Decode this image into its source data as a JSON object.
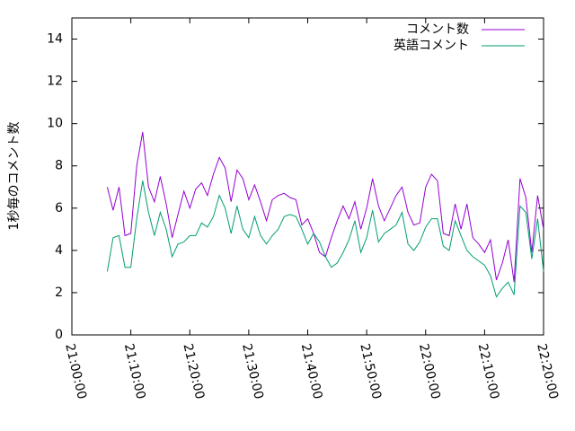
{
  "chart_data": {
    "type": "line",
    "y_label": "1秒毎のコメント数",
    "x": [
      "21:06:00",
      "21:07:00",
      "21:08:00",
      "21:09:00",
      "21:10:00",
      "21:11:00",
      "21:12:00",
      "21:13:00",
      "21:14:00",
      "21:15:00",
      "21:16:00",
      "21:17:00",
      "21:18:00",
      "21:19:00",
      "21:20:00",
      "21:21:00",
      "21:22:00",
      "21:23:00",
      "21:24:00",
      "21:25:00",
      "21:26:00",
      "21:27:00",
      "21:28:00",
      "21:29:00",
      "21:30:00",
      "21:31:00",
      "21:32:00",
      "21:33:00",
      "21:34:00",
      "21:35:00",
      "21:36:00",
      "21:37:00",
      "21:38:00",
      "21:39:00",
      "21:40:00",
      "21:41:00",
      "21:42:00",
      "21:43:00",
      "21:44:00",
      "21:45:00",
      "21:46:00",
      "21:47:00",
      "21:48:00",
      "21:49:00",
      "21:50:00",
      "21:51:00",
      "21:52:00",
      "21:53:00",
      "21:54:00",
      "21:55:00",
      "21:56:00",
      "21:57:00",
      "21:58:00",
      "21:59:00",
      "22:00:00",
      "22:01:00",
      "22:02:00",
      "22:03:00",
      "22:04:00",
      "22:05:00",
      "22:06:00",
      "22:07:00",
      "22:08:00",
      "22:09:00",
      "22:10:00",
      "22:11:00",
      "22:12:00",
      "22:13:00",
      "22:14:00",
      "22:15:00",
      "22:16:00",
      "22:17:00",
      "22:18:00",
      "22:19:00",
      "22:20:00"
    ],
    "series": [
      {
        "name": "コメント数",
        "color": "#9400d3",
        "values": [
          7.0,
          5.9,
          7.0,
          4.7,
          4.8,
          8.0,
          9.6,
          7.0,
          6.3,
          7.5,
          6.2,
          4.6,
          5.7,
          6.8,
          6.0,
          6.9,
          7.2,
          6.6,
          7.6,
          8.4,
          7.9,
          6.3,
          7.8,
          7.4,
          6.4,
          7.1,
          6.3,
          5.4,
          6.4,
          6.6,
          6.7,
          6.5,
          6.4,
          5.2,
          5.5,
          4.8,
          3.9,
          3.7,
          4.6,
          5.4,
          6.1,
          5.5,
          6.3,
          5.0,
          6.0,
          7.4,
          6.1,
          5.4,
          6.0,
          6.6,
          7.0,
          5.8,
          5.2,
          5.3,
          7.0,
          7.6,
          7.3,
          4.8,
          4.7,
          6.2,
          5.0,
          6.2,
          4.6,
          4.3,
          3.9,
          4.5,
          2.6,
          3.4,
          4.5,
          2.5,
          7.4,
          6.5,
          3.9,
          6.6,
          5.0
        ]
      },
      {
        "name": "英語コメント",
        "color": "#009e73",
        "values": [
          3.0,
          4.6,
          4.7,
          3.2,
          3.2,
          5.5,
          7.3,
          5.8,
          4.7,
          5.8,
          5.0,
          3.7,
          4.3,
          4.4,
          4.7,
          4.7,
          5.3,
          5.1,
          5.6,
          6.6,
          6.0,
          4.8,
          6.1,
          5.0,
          4.6,
          5.6,
          4.7,
          4.3,
          4.7,
          5.0,
          5.6,
          5.7,
          5.6,
          5.0,
          4.3,
          4.8,
          4.4,
          3.7,
          3.2,
          3.4,
          3.9,
          4.5,
          5.4,
          3.9,
          4.6,
          5.9,
          4.4,
          4.8,
          5.0,
          5.2,
          5.8,
          4.3,
          4.0,
          4.4,
          5.1,
          5.5,
          5.5,
          4.2,
          4.0,
          5.4,
          4.7,
          4.0,
          3.7,
          3.5,
          3.3,
          2.8,
          1.8,
          2.2,
          2.5,
          1.9,
          6.1,
          5.8,
          3.6,
          5.5,
          3.0
        ]
      }
    ],
    "xlim": [
      "21:00:00",
      "22:20:00"
    ],
    "xticks": [
      "21:00:00",
      "21:10:00",
      "21:20:00",
      "21:30:00",
      "21:40:00",
      "21:50:00",
      "22:00:00",
      "22:10:00",
      "22:20:00"
    ],
    "ylim": [
      0,
      15
    ],
    "yticks": [
      0,
      2,
      4,
      6,
      8,
      10,
      12,
      14
    ],
    "legend": "top-right"
  }
}
